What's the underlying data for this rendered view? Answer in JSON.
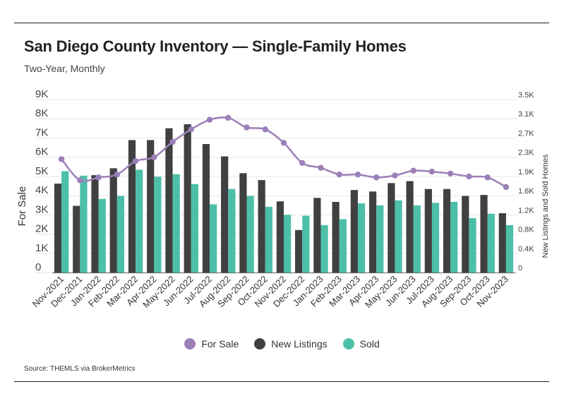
{
  "title": "San Diego County Inventory — Single-Family Homes",
  "subtitle": "Two-Year, Monthly",
  "source": "Source:  THEMLS via BrokerMetrics",
  "colors": {
    "for_sale": "#9c7fb8",
    "new_listings": "#404040",
    "sold": "#4cbfa9"
  },
  "chart_data": {
    "type": "bar",
    "title": "San Diego County Inventory — Single-Family Homes",
    "subtitle": "Two-Year, Monthly",
    "categories": [
      "Nov-2021",
      "Dec-2021",
      "Jan-2022",
      "Feb-2022",
      "Mar-2022",
      "Apr-2022",
      "May-2022",
      "Jun-2022",
      "Jul-2022",
      "Aug-2022",
      "Sep-2022",
      "Oct-2022",
      "Nov-2022",
      "Dec-2022",
      "Jan-2023",
      "Feb-2023",
      "Mar-2023",
      "Apr-2023",
      "May-2023",
      "Jun-2023",
      "Jul-2023",
      "Aug-2023",
      "Sep-2023",
      "Oct-2023",
      "Nov-2023"
    ],
    "ylabel_left": "For Sale",
    "ylabel_right": "New Listings and Sold Homes",
    "ylim_left": [
      0,
      9000
    ],
    "ylim_right": [
      0,
      3500
    ],
    "left_ticks": [
      "0",
      "1K",
      "2K",
      "3K",
      "4K",
      "5K",
      "6K",
      "7K",
      "8K",
      "9K"
    ],
    "right_ticks": [
      "0",
      "0.4K",
      "0.8K",
      "1.2K",
      "1.6K",
      "1.9K",
      "2.3K",
      "2.7K",
      "3.1K",
      "3.5K"
    ],
    "series": [
      {
        "name": "For Sale",
        "type": "line",
        "axis": "left",
        "values": [
          5900,
          4800,
          4950,
          5100,
          5800,
          6000,
          6800,
          7450,
          7950,
          8050,
          7550,
          7450,
          6750,
          5700,
          5450,
          5100,
          5100,
          4950,
          5050,
          5300,
          5250,
          5150,
          5000,
          4950,
          4450
        ]
      },
      {
        "name": "New Listings",
        "type": "bar",
        "axis": "right",
        "values": [
          1800,
          1350,
          1970,
          2110,
          2680,
          2680,
          2920,
          3000,
          2600,
          2350,
          2010,
          1870,
          1440,
          860,
          1510,
          1430,
          1670,
          1640,
          1810,
          1850,
          1690,
          1690,
          1550,
          1570,
          1200
        ]
      },
      {
        "name": "Sold",
        "type": "bar",
        "axis": "right",
        "values": [
          2050,
          1960,
          1490,
          1550,
          2080,
          1940,
          1990,
          1790,
          1380,
          1690,
          1550,
          1330,
          1170,
          1150,
          960,
          1080,
          1400,
          1360,
          1460,
          1360,
          1410,
          1430,
          1100,
          1190,
          960
        ]
      }
    ],
    "legend": [
      "For Sale",
      "New Listings",
      "Sold"
    ],
    "legend_position": "bottom"
  }
}
